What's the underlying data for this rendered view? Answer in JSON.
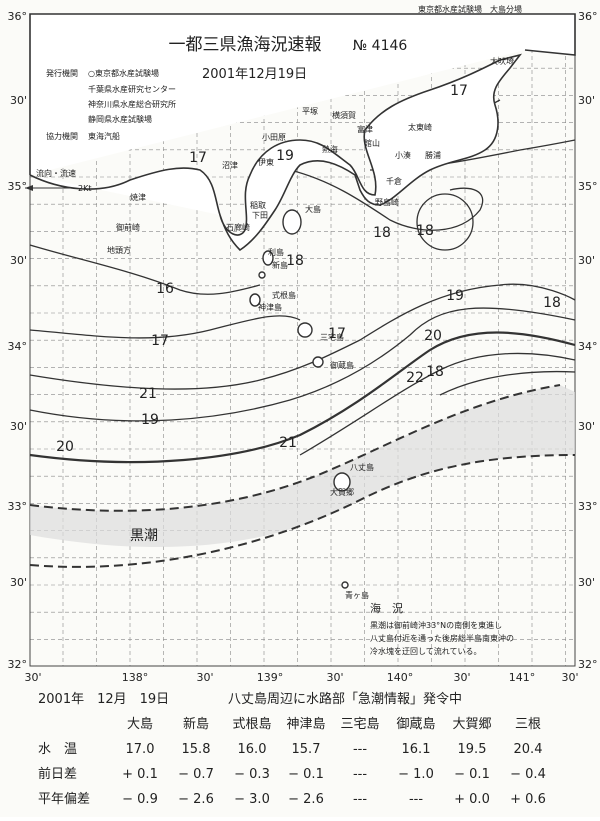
{
  "header": {
    "top_right": "東京都水産試験場　大島分場",
    "title": "一都三県漁海況速報",
    "number": "№ 4146",
    "issuer_label": "発行機関",
    "issuers": [
      "○東京都水産試験場",
      "千葉県水産研究センター",
      "神奈川県水産総合研究所",
      "静岡県水産試験場"
    ],
    "date": "2001年12月19日",
    "cooperation_label": "協力機関",
    "cooperation": "東海汽船"
  },
  "legend": {
    "label": "流向・流速",
    "scale": "2Kt"
  },
  "map": {
    "lat_labels": [
      "36°",
      "30'",
      "35°",
      "30'",
      "34°",
      "30'",
      "33°",
      "30'",
      "32°"
    ],
    "lon_labels": [
      "30'",
      "138°",
      "30'",
      "139°",
      "30'",
      "140°",
      "30'",
      "141°",
      "30'"
    ],
    "isotherm_labels": [
      "17",
      "19",
      "17",
      "18",
      "18",
      "18",
      "16",
      "17",
      "17",
      "19",
      "20",
      "18",
      "21",
      "22",
      "18",
      "19",
      "20",
      "21"
    ],
    "places": [
      "大吠埼",
      "横須賀",
      "平塚",
      "富津",
      "小田原",
      "館山",
      "太東崎",
      "勝浦",
      "小湊",
      "千倉",
      "野島崎",
      "熱海",
      "伊東",
      "沼津",
      "稲取",
      "下田",
      "焼津",
      "御前崎",
      "地頭方",
      "石廊崎",
      "大島",
      "利島",
      "新島",
      "式根島",
      "神津島",
      "三宅島",
      "御蔵島",
      "八丈島",
      "大賀郷",
      "青ヶ島"
    ],
    "kuroshio_label": "黒潮"
  },
  "note": {
    "title": "海　況",
    "lines": [
      "黒潮は御前崎沖33°Nの南側を東進し",
      "八丈島付近を通った後房総半島南東沖の",
      "冷水塊を迂回して流れている。"
    ]
  },
  "table": {
    "date": "2001年　12月　19日",
    "note": "八丈島周辺に水路部「急潮情報」発令中",
    "columns": [
      "大島",
      "新島",
      "式根島",
      "神津島",
      "三宅島",
      "御蔵島",
      "大賀郷",
      "三根"
    ],
    "rows": [
      {
        "label": "水　温",
        "cells": [
          "17.0",
          "15.8",
          "16.0",
          "15.7",
          "---",
          "16.1",
          "19.5",
          "20.4"
        ]
      },
      {
        "label": "前日差",
        "cells": [
          "+ 0.1",
          "− 0.7",
          "− 0.3",
          "− 0.1",
          "---",
          "− 1.0",
          "− 0.1",
          "− 0.4"
        ]
      },
      {
        "label": "平年偏差",
        "cells": [
          "− 0.9",
          "− 2.6",
          "− 3.0",
          "− 2.6",
          "---",
          "---",
          "+ 0.0",
          "+ 0.6"
        ]
      }
    ]
  }
}
